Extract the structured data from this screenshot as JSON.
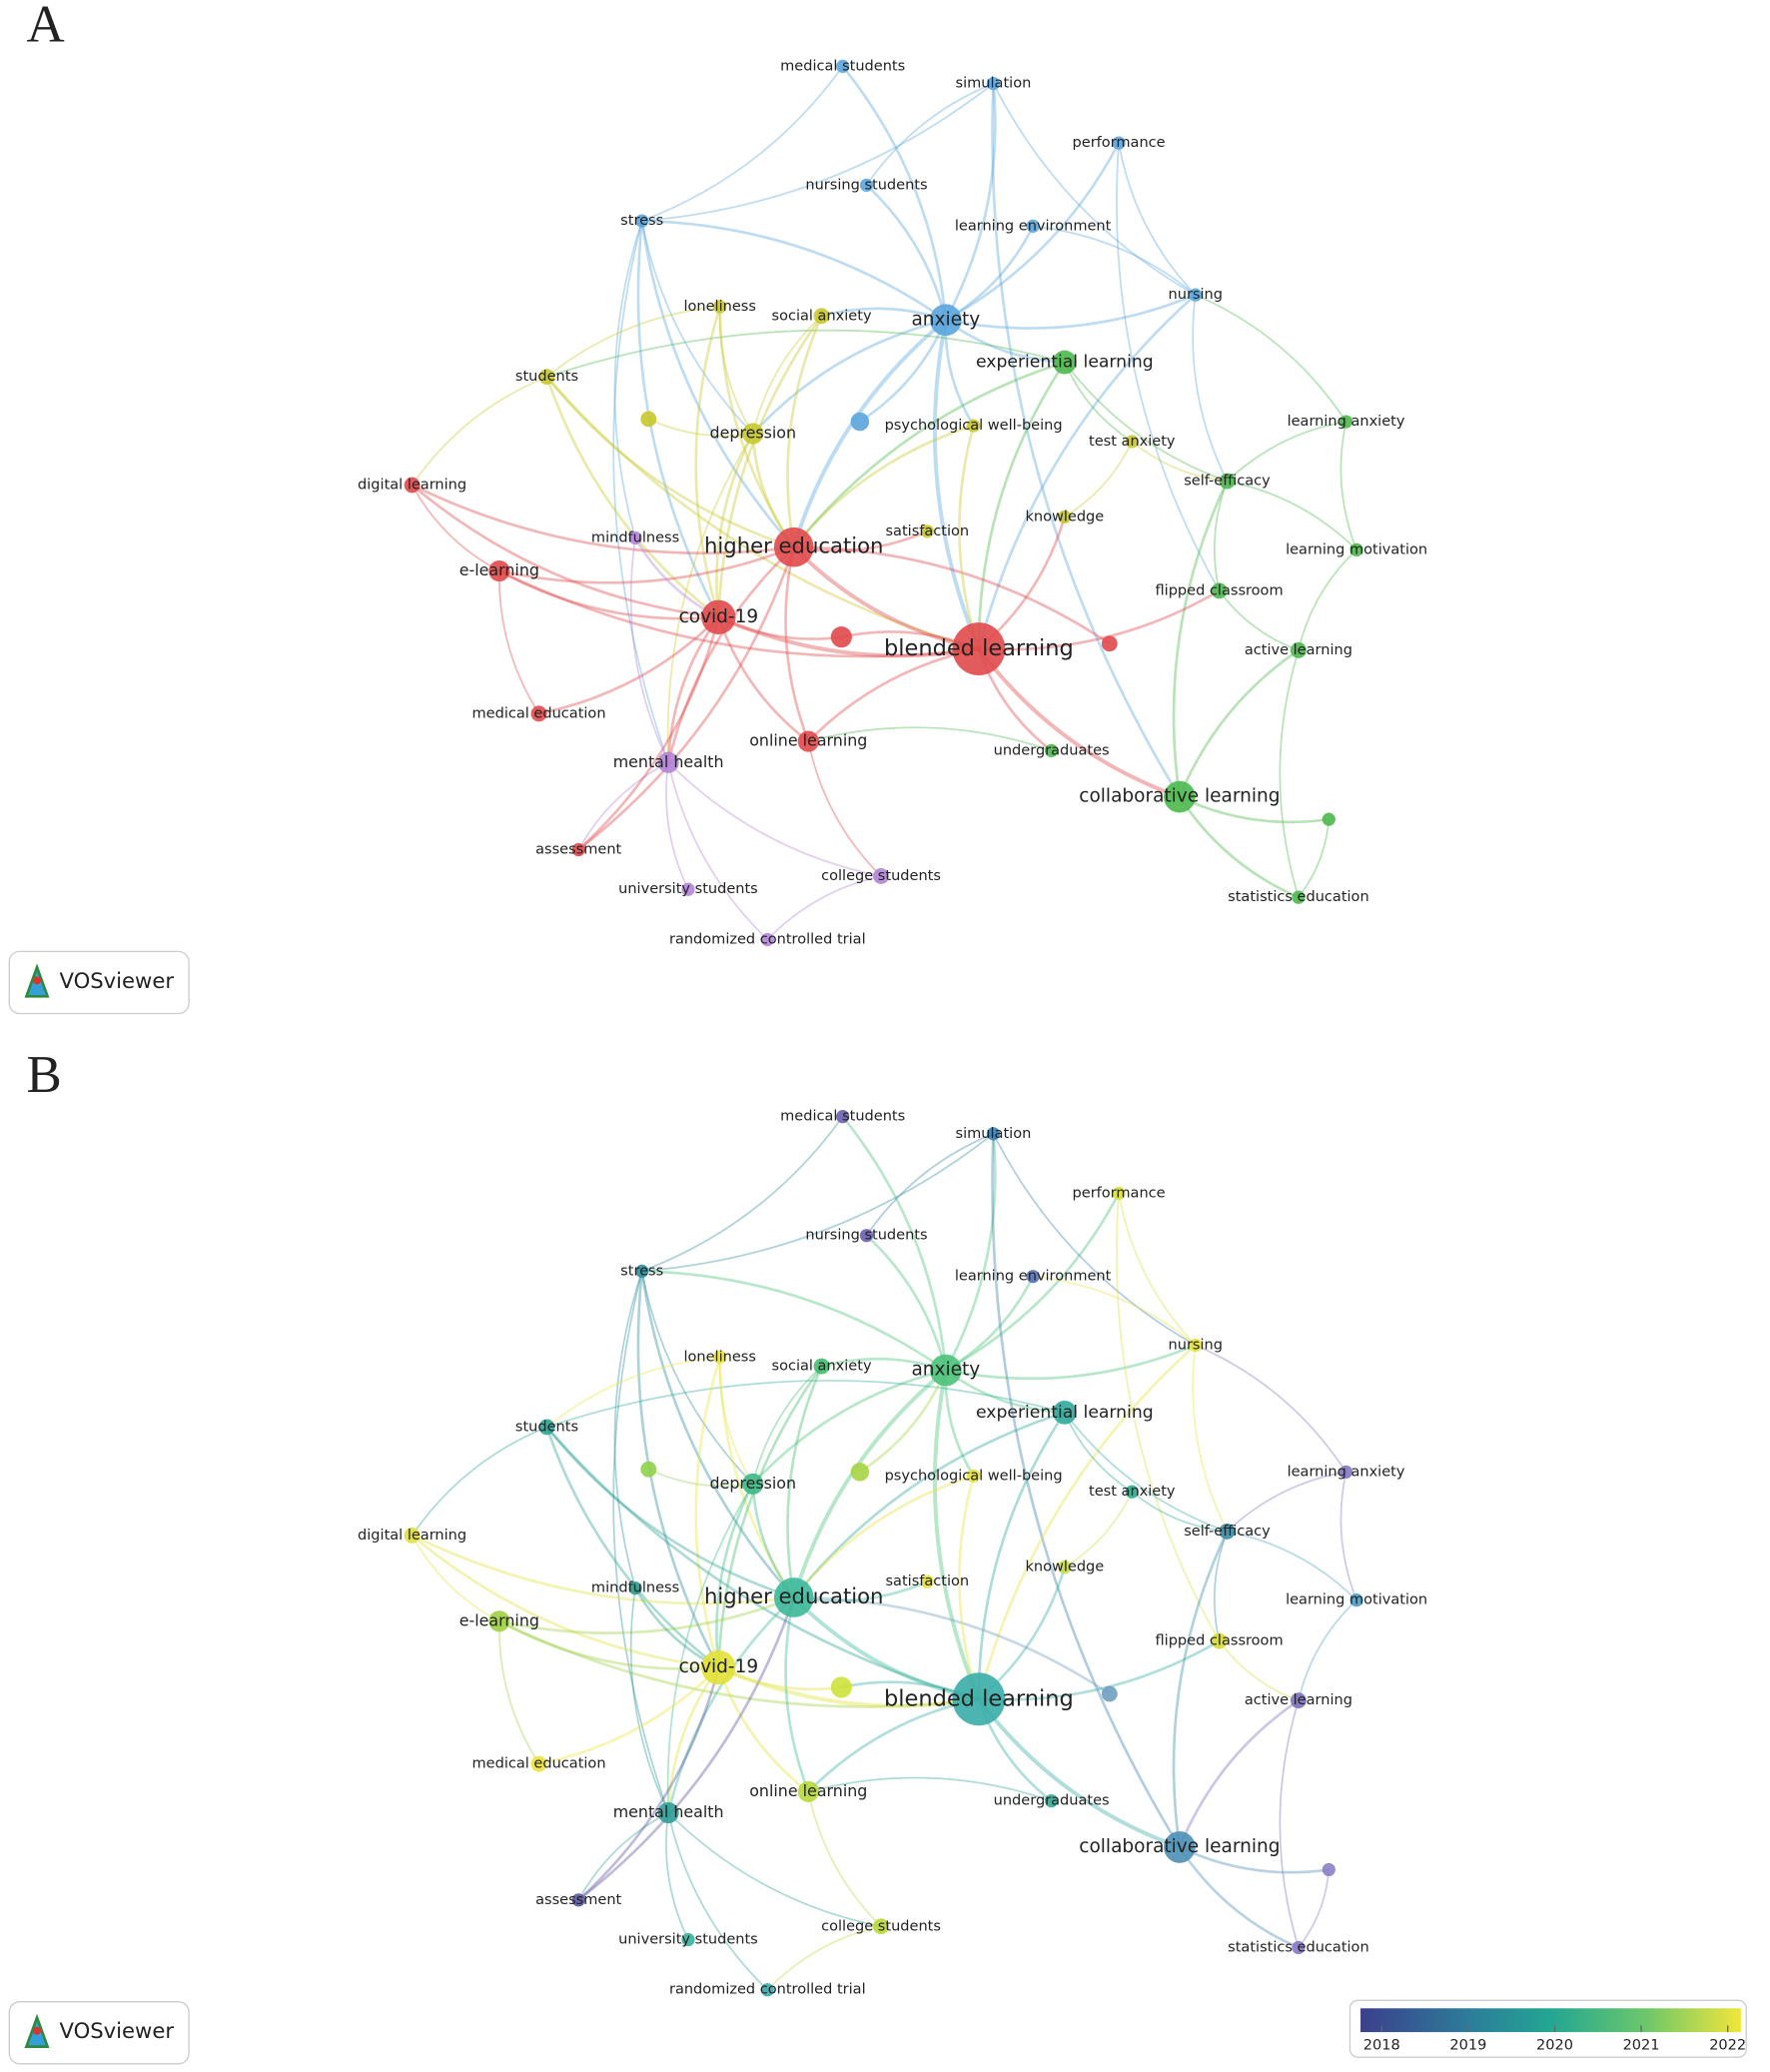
{
  "panels": [
    {
      "label": "A",
      "logo": "VOSviewer",
      "nodes": [
        "medical students",
        "simulation",
        "performance",
        "nursing students",
        "learning environment",
        "stress",
        "nursing",
        "anxiety",
        "experiential learning",
        "loneliness",
        "social anxiety",
        "students",
        "depression",
        "psychological well-being",
        "test anxiety",
        "learning anxiety",
        "self-efficacy",
        "digital learning",
        "knowledge",
        "mindfulness",
        "satisfaction",
        "higher education",
        "learning motivation",
        "e-learning",
        "flipped classroom",
        "covid-19",
        "blended learning",
        "active learning",
        "medical education",
        "online learning",
        "mental health",
        "undergraduates",
        "collaborative learning",
        "assessment",
        "college students",
        "university students",
        "randomized controlled trial",
        "statistics education"
      ]
    },
    {
      "label": "B",
      "logo": "VOSviewer",
      "nodes": [
        "medical students",
        "simulation",
        "performance",
        "nursing students",
        "learning environment",
        "stress",
        "nursing",
        "anxiety",
        "experiential learning",
        "loneliness",
        "social anxiety",
        "students",
        "depression",
        "psychological well-being",
        "test anxiety",
        "learning anxiety",
        "self-efficacy",
        "digital learning",
        "knowledge",
        "mindfulness",
        "satisfaction",
        "higher education",
        "learning motivation",
        "e-learning",
        "flipped classroom",
        "covid-19",
        "blended learning",
        "active learning",
        "medical education",
        "online learning",
        "mental health",
        "undergraduates",
        "collaborative learning",
        "assessment",
        "college students",
        "university students",
        "randomized controlled trial",
        "statistics education"
      ],
      "legend": {
        "ticks": [
          2018,
          2019,
          2020,
          2021,
          2022
        ]
      }
    }
  ]
}
